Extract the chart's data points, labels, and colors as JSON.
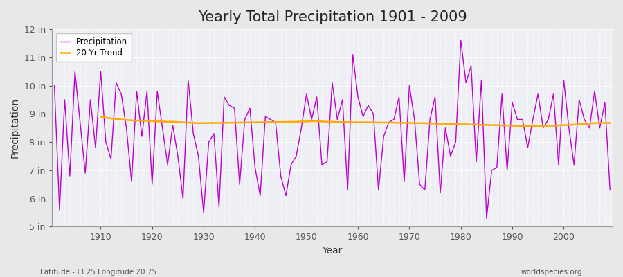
{
  "title": "Yearly Total Precipitation 1901 - 2009",
  "xlabel": "Year",
  "ylabel": "Precipitation",
  "years": [
    1901,
    1902,
    1903,
    1904,
    1905,
    1906,
    1907,
    1908,
    1909,
    1910,
    1911,
    1912,
    1913,
    1914,
    1915,
    1916,
    1917,
    1918,
    1919,
    1920,
    1921,
    1922,
    1923,
    1924,
    1925,
    1926,
    1927,
    1928,
    1929,
    1930,
    1931,
    1932,
    1933,
    1934,
    1935,
    1936,
    1937,
    1938,
    1939,
    1940,
    1941,
    1942,
    1943,
    1944,
    1945,
    1946,
    1947,
    1948,
    1949,
    1950,
    1951,
    1952,
    1953,
    1954,
    1955,
    1956,
    1957,
    1958,
    1959,
    1960,
    1961,
    1962,
    1963,
    1964,
    1965,
    1966,
    1967,
    1968,
    1969,
    1970,
    1971,
    1972,
    1973,
    1974,
    1975,
    1976,
    1977,
    1978,
    1979,
    1980,
    1981,
    1982,
    1983,
    1984,
    1985,
    1986,
    1987,
    1988,
    1989,
    1990,
    1991,
    1992,
    1993,
    1994,
    1995,
    1996,
    1997,
    1998,
    1999,
    2000,
    2001,
    2002,
    2003,
    2004,
    2005,
    2006,
    2007,
    2008,
    2009
  ],
  "precip": [
    10.0,
    5.6,
    9.5,
    6.8,
    10.5,
    8.7,
    6.9,
    9.5,
    7.8,
    10.5,
    8.0,
    7.4,
    10.1,
    9.7,
    8.5,
    6.6,
    9.8,
    8.2,
    9.8,
    6.5,
    9.8,
    8.5,
    7.2,
    8.6,
    7.5,
    6.0,
    10.2,
    8.3,
    7.5,
    5.5,
    8.0,
    8.3,
    5.7,
    9.6,
    9.3,
    9.2,
    6.5,
    8.8,
    9.2,
    7.1,
    6.1,
    8.9,
    8.8,
    8.7,
    6.8,
    6.1,
    7.2,
    7.5,
    8.5,
    9.7,
    8.8,
    9.6,
    7.2,
    7.3,
    10.1,
    8.8,
    9.5,
    6.3,
    11.1,
    9.6,
    8.9,
    9.3,
    9.0,
    6.3,
    8.2,
    8.7,
    8.8,
    9.6,
    6.6,
    10.0,
    8.8,
    6.5,
    6.3,
    8.8,
    9.6,
    6.2,
    8.5,
    7.5,
    8.0,
    11.6,
    10.1,
    10.7,
    7.3,
    10.2,
    5.3,
    7.0,
    7.1,
    9.7,
    7.0,
    9.4,
    8.8,
    8.8,
    7.8,
    8.8,
    9.7,
    8.5,
    8.8,
    9.7,
    7.2,
    10.2,
    8.5,
    7.2,
    9.5,
    8.8,
    8.5,
    9.8,
    8.5,
    9.4,
    6.3
  ],
  "trend_years": [
    1910,
    1911,
    1912,
    1913,
    1914,
    1915,
    1916,
    1917,
    1918,
    1919,
    1920,
    1921,
    1922,
    1923,
    1924,
    1925,
    1926,
    1927,
    1928,
    1929,
    1948,
    1949,
    1950,
    1951,
    1952,
    1953,
    1954,
    1955,
    1956,
    1957,
    1958,
    1959,
    1960,
    1961,
    1962,
    1963,
    1964,
    1965,
    1966,
    1967,
    1968,
    1969,
    1970,
    1971,
    1972,
    1973,
    1974,
    1975,
    1976,
    1977,
    1978,
    1979,
    1980,
    1981,
    1982,
    1983,
    1984,
    1985,
    1986,
    1987,
    1988,
    1989,
    1990,
    1991,
    1992,
    1993,
    1994,
    1995,
    1996,
    1997,
    1998,
    1999,
    2000,
    2001,
    2002,
    2003,
    2004,
    2005,
    2006,
    2007,
    2008,
    2009
  ],
  "trend_values": [
    8.9,
    8.87,
    8.84,
    8.82,
    8.8,
    8.78,
    8.77,
    8.76,
    8.76,
    8.75,
    8.74,
    8.73,
    8.73,
    8.72,
    8.72,
    8.71,
    8.7,
    8.69,
    8.68,
    8.67,
    8.72,
    8.73,
    8.73,
    8.74,
    8.74,
    8.73,
    8.72,
    8.72,
    8.71,
    8.71,
    8.71,
    8.7,
    8.7,
    8.7,
    8.7,
    8.7,
    8.69,
    8.69,
    8.69,
    8.69,
    8.68,
    8.68,
    8.68,
    8.67,
    8.67,
    8.67,
    8.66,
    8.66,
    8.65,
    8.65,
    8.64,
    8.64,
    8.63,
    8.63,
    8.62,
    8.62,
    8.61,
    8.61,
    8.6,
    8.6,
    8.59,
    8.59,
    8.58,
    8.58,
    8.57,
    8.57,
    8.57,
    8.57,
    8.57,
    8.58,
    8.58,
    8.59,
    8.6,
    8.61,
    8.62,
    8.63,
    8.65,
    8.66,
    8.67,
    8.68,
    8.68,
    8.68
  ],
  "precip_color": "#bb00cc",
  "trend_color": "#ffaa00",
  "fig_bg_color": "#e8e8e8",
  "plot_bg_color": "#eeeef5",
  "grid_color": "#ffffff",
  "ylim": [
    5,
    12
  ],
  "yticks": [
    5,
    6,
    7,
    8,
    9,
    10,
    11,
    12
  ],
  "ytick_labels": [
    "5 in",
    "6 in",
    "7 in",
    "8 in",
    "9 in",
    "10 in",
    "11 in",
    "12 in"
  ],
  "title_fontsize": 15,
  "label_fontsize": 10,
  "tick_fontsize": 9,
  "footnote_left": "Latitude -33.25 Longitude 20.75",
  "footnote_right": "worldspecies.org"
}
